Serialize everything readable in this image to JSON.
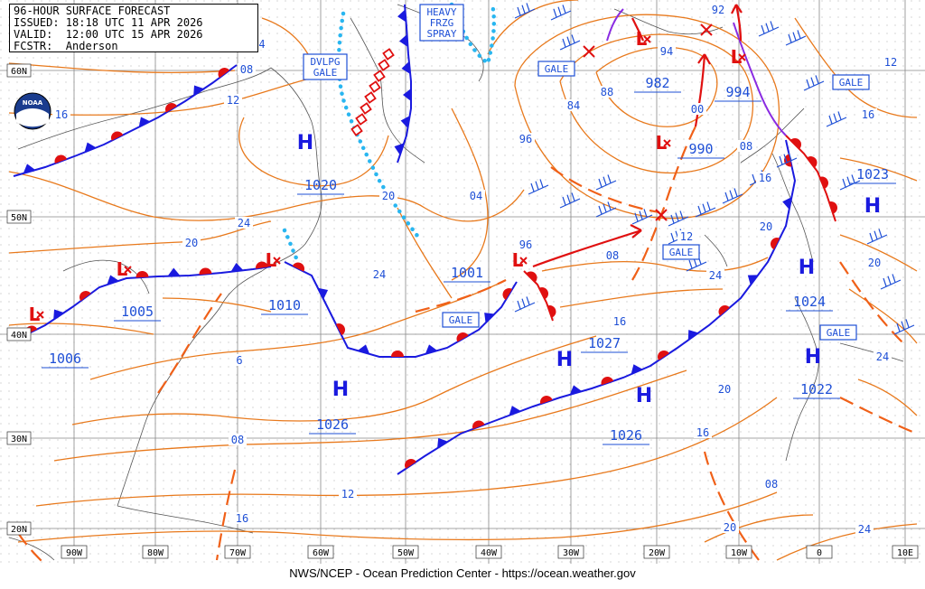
{
  "header": {
    "line1": "96-HOUR SURFACE FORECAST",
    "line2": "ISSUED: 18:18 UTC 11 APR 2026",
    "line3": "VALID:  12:00 UTC 15 APR 2026",
    "line4": "FCSTR:  Anderson"
  },
  "credit": "NWS/NCEP - Ocean Prediction Center - https://ocean.weather.gov",
  "logo": {
    "text": "NOAA",
    "icon": "noaa-logo-icon"
  },
  "lat_labels": [
    "60N",
    "50N",
    "40N",
    "30N",
    "20N"
  ],
  "lon_labels": [
    "90W",
    "80W",
    "70W",
    "60W",
    "50W",
    "40W",
    "30W",
    "20W",
    "10W",
    "0",
    "10E"
  ],
  "pressure_centers": [
    {
      "type": "H",
      "value": "1020"
    },
    {
      "type": "L",
      "value": "1010"
    },
    {
      "type": "L",
      "value": "1005"
    },
    {
      "type": "L",
      "value": "1006"
    },
    {
      "type": "H",
      "value": "1026"
    },
    {
      "type": "L",
      "value": "1001"
    },
    {
      "type": "H",
      "value": "1027"
    },
    {
      "type": "H",
      "value": "1026"
    },
    {
      "type": "L",
      "value": "982"
    },
    {
      "type": "L",
      "value": "990"
    },
    {
      "type": "L",
      "value": "994"
    },
    {
      "type": "H",
      "value": "1024"
    },
    {
      "type": "H",
      "value": "1023"
    },
    {
      "type": "H",
      "value": "1022"
    }
  ],
  "isobar_labels": [
    "4",
    "08",
    "12",
    "16",
    "20",
    "24",
    "6",
    "08",
    "12",
    "16",
    "20",
    "24",
    "04",
    "96",
    "84",
    "88",
    "94",
    "92",
    "00",
    "08",
    "16",
    "20",
    "24",
    "12",
    "16",
    "20",
    "08",
    "16",
    "20",
    "24",
    "12",
    "16",
    "20",
    "24",
    "96",
    "08"
  ],
  "warnings": {
    "gale": "GALE",
    "dvlpg_gale": [
      "DVLPG",
      "GALE"
    ],
    "freezing_spray": [
      "HEAVY",
      "FRZG",
      "SPRAY"
    ]
  },
  "colors": {
    "isobar": "#e8791c",
    "cold_front": "#1a1adf",
    "warm_front": "#e01010",
    "occluded": "#8a2be2",
    "ice": "#29b6f0",
    "high": "#1a1adf",
    "low": "#e01010",
    "trough": "#f06018"
  }
}
